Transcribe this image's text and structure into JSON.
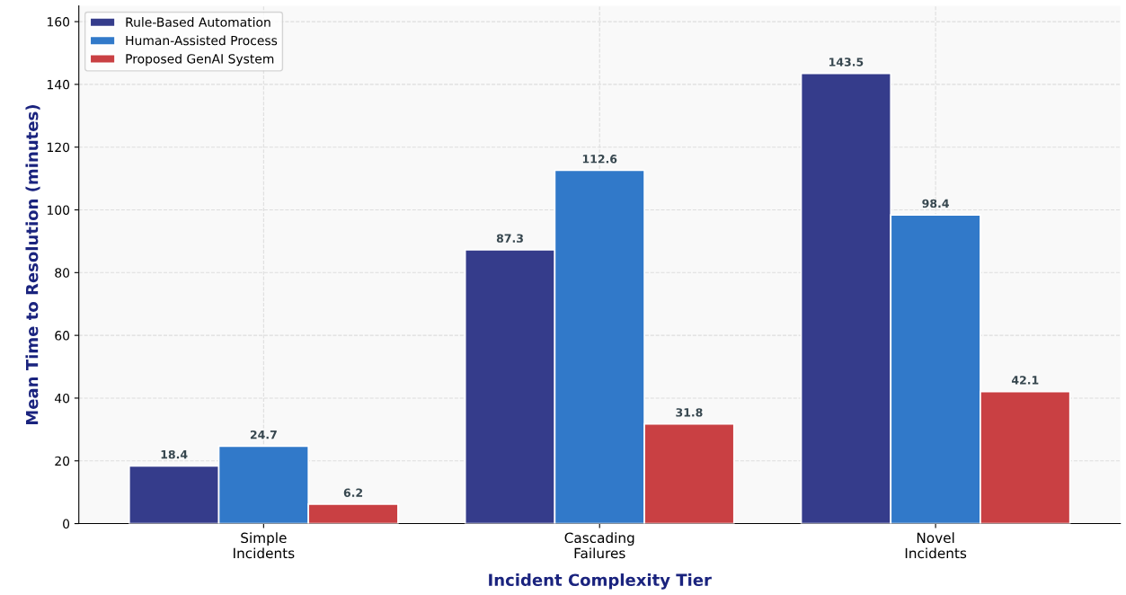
{
  "chart_data": {
    "type": "bar",
    "xlabel": "Incident Complexity Tier",
    "ylabel": "Mean Time to Resolution (minutes)",
    "categories": [
      "Simple\nIncidents",
      "Cascading\nFailures",
      "Novel\nIncidents"
    ],
    "series": [
      {
        "name": "Rule-Based Automation",
        "color": "#353c8b",
        "values": [
          18.4,
          87.3,
          143.5
        ]
      },
      {
        "name": "Human-Assisted Process",
        "color": "#3179c9",
        "values": [
          24.7,
          112.6,
          98.4
        ]
      },
      {
        "name": "Proposed GenAI System",
        "color": "#c94043",
        "values": [
          6.2,
          31.8,
          42.1
        ]
      }
    ],
    "ylim": [
      0,
      165
    ],
    "yticks": [
      0,
      20,
      40,
      60,
      80,
      100,
      120,
      140,
      160
    ],
    "grid": true,
    "legend": "top left",
    "data_labels": true
  }
}
